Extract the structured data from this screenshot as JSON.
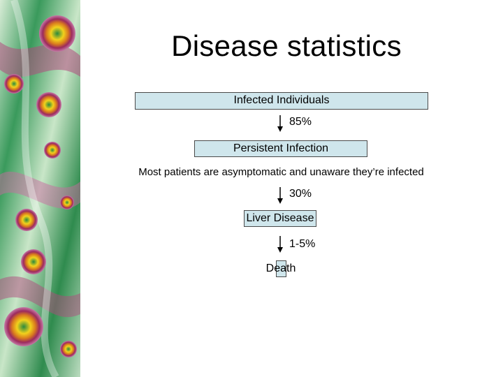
{
  "slide": {
    "title": "Disease statistics",
    "nodes": {
      "infected": "Infected Individuals",
      "persistent": "Persistent Infection",
      "note": "Most patients are asymptomatic and unaware they’re infected",
      "liver": "Liver Disease",
      "death": "Death"
    },
    "rates": {
      "to_persistent": "85%",
      "to_liver": "30%",
      "to_death": "1-5%"
    }
  },
  "colors": {
    "box_fill": "#cfe6ec",
    "box_border": "#4a4a4a",
    "panel_green": "#2f9a52",
    "panel_magenta": "#b04a7e",
    "virus_yellow": "#f2d11c"
  }
}
